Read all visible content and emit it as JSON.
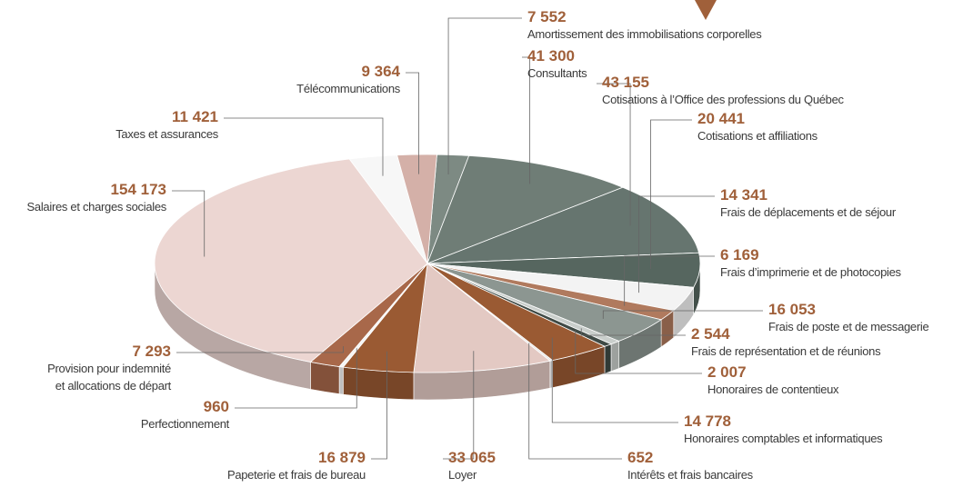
{
  "chart_data": {
    "type": "pie",
    "categories": [
      "Amortissement des immobilisations corporelles",
      "Consultants",
      "Cotisations à l’Office des professions du Québec",
      "Cotisations et affiliations",
      "Frais de déplacements et de séjour",
      "Frais d’imprimerie et de photocopies",
      "Frais de poste et de messagerie",
      "Frais de représentation et de réunions",
      "Honoraires de contentieux",
      "Honoraires comptables et informatiques",
      "Intérêts et frais bancaires",
      "Loyer",
      "Papeterie et frais de bureau",
      "Perfectionnement",
      "Provision pour indemnité\net allocations de départ",
      "Salaires et charges sociales",
      "Taxes et assurances",
      "Télécommunications"
    ],
    "values": [
      7552,
      41300,
      43155,
      20441,
      14341,
      6169,
      16053,
      2544,
      2007,
      14778,
      652,
      33065,
      16879,
      960,
      7293,
      154173,
      11421,
      9364
    ],
    "value_labels": [
      "7 552",
      "41 300",
      "43 155",
      "20 441",
      "14 341",
      "6 169",
      "16 053",
      "2 544",
      "2 007",
      "14 778",
      "652",
      "33 065",
      "16 879",
      "960",
      "7 293",
      "154 173",
      "11 421",
      "9 364"
    ],
    "colors": [
      "#7d8a83",
      "#6f7d76",
      "#66756f",
      "#56665f",
      "#f3f3f3",
      "#b07a5e",
      "#8c9691",
      "#c9cecb",
      "#3f4a45",
      "#9a5a33",
      "#e6e6e6",
      "#e3c9c3",
      "#9a5a33",
      "#f5f5f5",
      "#a8684a",
      "#ecd6d2",
      "#f7f7f7",
      "#d4b0a8"
    ]
  }
}
